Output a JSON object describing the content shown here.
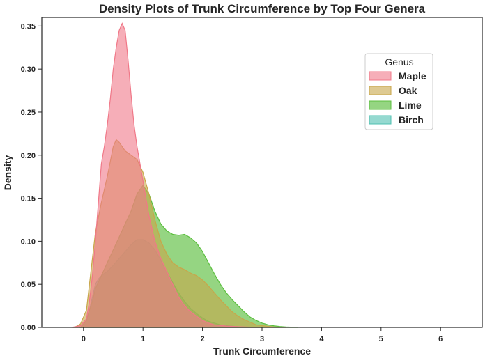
{
  "chart_data": {
    "type": "area",
    "title": "Density Plots of Trunk Circumference by Top Four Genera",
    "xlabel": "Trunk Circumference",
    "ylabel": "Density",
    "xlim": [
      -0.7,
      6.7
    ],
    "ylim": [
      0,
      0.36
    ],
    "xticks": [
      "0",
      "1",
      "2",
      "3",
      "4",
      "5",
      "6"
    ],
    "yticks": [
      "0.00",
      "0.05",
      "0.10",
      "0.15",
      "0.20",
      "0.25",
      "0.30",
      "0.35"
    ],
    "grid": false,
    "legend": {
      "title": "Genus",
      "placement": "upper-right"
    },
    "series": [
      {
        "name": "Maple",
        "color": "#f07888",
        "fill_opacity": 0.6,
        "x": [
          -0.2,
          -0.05,
          0.05,
          0.1,
          0.15,
          0.2,
          0.25,
          0.3,
          0.35,
          0.4,
          0.45,
          0.5,
          0.55,
          0.6,
          0.65,
          0.7,
          0.75,
          0.8,
          0.85,
          0.9,
          0.95,
          1.0,
          1.05,
          1.1,
          1.2,
          1.3,
          1.4,
          1.5,
          1.6,
          1.7,
          1.8,
          1.9,
          2.0,
          2.1,
          2.2,
          2.4,
          2.6,
          2.8,
          3.0
        ],
        "y": [
          0.0,
          0.002,
          0.01,
          0.03,
          0.06,
          0.1,
          0.145,
          0.19,
          0.21,
          0.235,
          0.265,
          0.3,
          0.325,
          0.345,
          0.353,
          0.345,
          0.31,
          0.27,
          0.235,
          0.21,
          0.19,
          0.17,
          0.15,
          0.13,
          0.1,
          0.08,
          0.065,
          0.05,
          0.035,
          0.025,
          0.018,
          0.013,
          0.008,
          0.005,
          0.003,
          0.0015,
          0.0008,
          0.0003,
          0.0
        ]
      },
      {
        "name": "Oak",
        "color": "#c8a64a",
        "fill_opacity": 0.6,
        "x": [
          -0.15,
          -0.05,
          0.05,
          0.1,
          0.15,
          0.2,
          0.3,
          0.4,
          0.5,
          0.55,
          0.6,
          0.7,
          0.8,
          0.9,
          1.0,
          1.1,
          1.2,
          1.3,
          1.4,
          1.5,
          1.6,
          1.7,
          1.8,
          1.9,
          2.0,
          2.1,
          2.2,
          2.3,
          2.4,
          2.5,
          2.6,
          2.7,
          2.8,
          2.9,
          3.0,
          3.2,
          3.4
        ],
        "y": [
          0.0,
          0.004,
          0.02,
          0.05,
          0.08,
          0.11,
          0.145,
          0.175,
          0.21,
          0.218,
          0.215,
          0.205,
          0.2,
          0.195,
          0.18,
          0.155,
          0.125,
          0.1,
          0.085,
          0.075,
          0.07,
          0.067,
          0.063,
          0.06,
          0.055,
          0.048,
          0.04,
          0.032,
          0.025,
          0.018,
          0.013,
          0.009,
          0.006,
          0.003,
          0.002,
          0.0005,
          0.0
        ]
      },
      {
        "name": "Lime",
        "color": "#5cbf3f",
        "fill_opacity": 0.65,
        "x": [
          -0.05,
          0.05,
          0.1,
          0.15,
          0.2,
          0.3,
          0.4,
          0.5,
          0.6,
          0.7,
          0.8,
          0.9,
          1.0,
          1.1,
          1.2,
          1.3,
          1.4,
          1.5,
          1.6,
          1.7,
          1.8,
          1.9,
          2.0,
          2.1,
          2.2,
          2.3,
          2.4,
          2.5,
          2.6,
          2.7,
          2.8,
          2.9,
          3.0,
          3.1,
          3.2,
          3.3,
          3.4,
          3.6
        ],
        "y": [
          0.0,
          0.008,
          0.02,
          0.03,
          0.045,
          0.06,
          0.075,
          0.09,
          0.105,
          0.12,
          0.135,
          0.155,
          0.165,
          0.155,
          0.135,
          0.12,
          0.112,
          0.108,
          0.107,
          0.108,
          0.104,
          0.098,
          0.088,
          0.075,
          0.062,
          0.05,
          0.04,
          0.032,
          0.025,
          0.018,
          0.012,
          0.008,
          0.005,
          0.003,
          0.0018,
          0.001,
          0.0005,
          0.0
        ]
      },
      {
        "name": "Birch",
        "color": "#4ec0b0",
        "fill_opacity": 0.6,
        "x": [
          -0.05,
          0.05,
          0.1,
          0.15,
          0.2,
          0.25,
          0.3,
          0.4,
          0.5,
          0.6,
          0.7,
          0.8,
          0.9,
          1.0,
          1.1,
          1.2,
          1.3,
          1.4,
          1.5,
          1.6,
          1.7,
          1.8,
          1.9,
          2.0,
          2.1,
          2.2,
          2.3,
          2.4,
          2.6,
          2.8,
          3.0
        ],
        "y": [
          0.0,
          0.008,
          0.02,
          0.035,
          0.05,
          0.056,
          0.06,
          0.065,
          0.072,
          0.08,
          0.088,
          0.096,
          0.102,
          0.102,
          0.098,
          0.09,
          0.078,
          0.065,
          0.052,
          0.04,
          0.03,
          0.022,
          0.016,
          0.011,
          0.007,
          0.005,
          0.003,
          0.002,
          0.0008,
          0.0002,
          0.0
        ]
      }
    ]
  }
}
